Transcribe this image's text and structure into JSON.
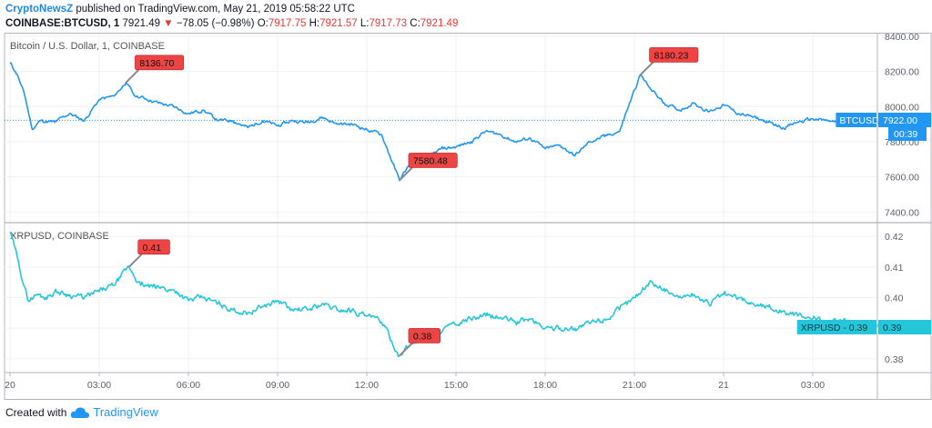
{
  "header": {
    "author": "CryptoNewsZ",
    "published_text": "published on TradingView.com, May 21, 2019 05:58:22 UTC",
    "symbol_line": "COINBASE:BTCUSD, 1",
    "last": "7921.49",
    "change_arrow": "▼",
    "change": "−78.05 (−0.98%)",
    "o_label": "O:",
    "o": "7917.75",
    "h_label": "H:",
    "h": "7921.57",
    "l_label": "L:",
    "l": "7917.73",
    "c_label": "C:",
    "c": "7921.49"
  },
  "footer": {
    "created_with": "Created with",
    "tv_brand": "TradingView"
  },
  "colors": {
    "btc_line": "#2196f3",
    "xrp_line": "#26c6da",
    "callout": "#ef4444",
    "grid": "#eef1f5",
    "axis_text": "#5d606b"
  },
  "chart_data": [
    {
      "type": "line",
      "title": "Bitcoin / U.S. Dollar, 1, COINBASE",
      "series": [
        {
          "name": "BTCUSD",
          "price_tag": "7922.00",
          "countdown": "00:39"
        }
      ],
      "yticks": [
        "8400.00",
        "8200.00",
        "8000.00",
        "7800.00",
        "7600.00",
        "7400.00"
      ],
      "ylim": [
        7340,
        8420
      ],
      "keypoints_hours": [
        0,
        0.25,
        0.5,
        0.75,
        1,
        1.5,
        2,
        2.5,
        3,
        3.5,
        3.9,
        4.2,
        4.5,
        5,
        5.5,
        6,
        6.5,
        7,
        7.5,
        8,
        8.5,
        9,
        9.5,
        10,
        10.5,
        11,
        11.5,
        12,
        12.5,
        13.1,
        13.4,
        13.7,
        14,
        14.5,
        15,
        15.5,
        16,
        16.5,
        17,
        17.5,
        18,
        18.5,
        19,
        19.5,
        20,
        20.5,
        20.8,
        21.2,
        21.5,
        22,
        22.5,
        23,
        23.5,
        24,
        24.5,
        25,
        25.5,
        26,
        26.5,
        27,
        27.5,
        28,
        28.5,
        29,
        29.5
      ],
      "keypoints_values": [
        8250,
        8180,
        8060,
        7870,
        7920,
        7910,
        7960,
        7920,
        8040,
        8060,
        8136.7,
        8060,
        8050,
        8020,
        8000,
        7960,
        7980,
        7920,
        7920,
        7880,
        7920,
        7890,
        7920,
        7910,
        7940,
        7900,
        7900,
        7870,
        7840,
        7580.48,
        7660,
        7720,
        7700,
        7760,
        7770,
        7800,
        7860,
        7840,
        7800,
        7820,
        7760,
        7780,
        7720,
        7800,
        7830,
        7860,
        8000,
        8180.23,
        8110,
        8020,
        7980,
        8020,
        7970,
        8010,
        7960,
        7940,
        7910,
        7880,
        7910,
        7930,
        7920,
        7900,
        7920,
        7910,
        7922
      ],
      "annotations": [
        {
          "text": "8136.70",
          "x": 3.9,
          "y": 8136.7
        },
        {
          "text": "7580.48",
          "x": 13.1,
          "y": 7580.48
        },
        {
          "text": "8180.23",
          "x": 21.2,
          "y": 8180.23
        }
      ]
    },
    {
      "type": "line",
      "title": "XRPUSD, COINBASE",
      "series": [
        {
          "name": "XRPUSD",
          "price_tag": "0.39"
        }
      ],
      "yticks": [
        "0.42",
        "0.41",
        "0.40",
        "0.39",
        "0.38"
      ],
      "ylim": [
        0.3755,
        0.4245
      ],
      "keypoints_hours": [
        0,
        0.25,
        0.6,
        0.9,
        1.2,
        1.5,
        2,
        2.5,
        3,
        3.5,
        4,
        4.4,
        4.8,
        5.2,
        5.6,
        6,
        6.5,
        7,
        7.5,
        8,
        8.5,
        9,
        9.5,
        10,
        10.5,
        11,
        11.5,
        12,
        12.5,
        13.1,
        13.4,
        13.7,
        14.2,
        14.6,
        15,
        15.5,
        16,
        16.5,
        17,
        17.5,
        18,
        18.5,
        19,
        19.5,
        20,
        20.5,
        21,
        21.5,
        22,
        22.5,
        23,
        23.5,
        24,
        24.5,
        25,
        25.5,
        26,
        26.5,
        27,
        27.5,
        28,
        28.5,
        29,
        29.5
      ],
      "keypoints_values": [
        0.4215,
        0.413,
        0.399,
        0.401,
        0.4,
        0.402,
        0.401,
        0.4,
        0.402,
        0.404,
        0.41,
        0.404,
        0.4035,
        0.403,
        0.402,
        0.399,
        0.4,
        0.398,
        0.396,
        0.395,
        0.397,
        0.399,
        0.396,
        0.396,
        0.398,
        0.396,
        0.396,
        0.394,
        0.392,
        0.381,
        0.384,
        0.386,
        0.388,
        0.39,
        0.391,
        0.393,
        0.394,
        0.3935,
        0.392,
        0.393,
        0.39,
        0.39,
        0.39,
        0.3915,
        0.393,
        0.396,
        0.4,
        0.405,
        0.403,
        0.4,
        0.401,
        0.398,
        0.401,
        0.4,
        0.398,
        0.397,
        0.3955,
        0.394,
        0.393,
        0.3925,
        0.392,
        0.391,
        0.3905,
        0.39
      ],
      "annotations": [
        {
          "text": "0.41",
          "x": 4.0,
          "y": 0.41
        },
        {
          "text": "0.38",
          "x": 13.1,
          "y": 0.381
        }
      ]
    }
  ],
  "xaxis": {
    "ticks": [
      {
        "label": "20",
        "hour": 0
      },
      {
        "label": "03:00",
        "hour": 3
      },
      {
        "label": "06:00",
        "hour": 6
      },
      {
        "label": "09:00",
        "hour": 9
      },
      {
        "label": "12:00",
        "hour": 12
      },
      {
        "label": "15:00",
        "hour": 15
      },
      {
        "label": "18:00",
        "hour": 18
      },
      {
        "label": "21:00",
        "hour": 21
      },
      {
        "label": "21",
        "hour": 24
      },
      {
        "label": "03:00",
        "hour": 27
      }
    ]
  }
}
